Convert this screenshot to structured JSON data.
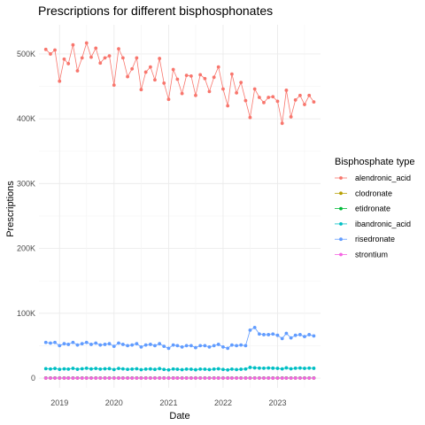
{
  "chart_data": {
    "type": "line",
    "title": "Prescriptions for different bisphosphonates",
    "xlabel": "Date",
    "ylabel": "Prescriptions",
    "x_ticks": [
      "2019",
      "2020",
      "2021",
      "2022",
      "2023"
    ],
    "y_ticks": [
      "0",
      "100K",
      "200K",
      "300K",
      "400K",
      "500K"
    ],
    "y_tick_values": [
      0,
      100000,
      200000,
      300000,
      400000,
      500000
    ],
    "ylim": [
      -15000,
      545000
    ],
    "xlim": [
      "2018-08-16",
      "2023-10-16"
    ],
    "grid": true,
    "legend_position": "right",
    "legend_title": "Bisphosphate type",
    "x": [
      "2018-10",
      "2018-11",
      "2018-12",
      "2019-01",
      "2019-02",
      "2019-03",
      "2019-04",
      "2019-05",
      "2019-06",
      "2019-07",
      "2019-08",
      "2019-09",
      "2019-10",
      "2019-11",
      "2019-12",
      "2020-01",
      "2020-02",
      "2020-03",
      "2020-04",
      "2020-05",
      "2020-06",
      "2020-07",
      "2020-08",
      "2020-09",
      "2020-10",
      "2020-11",
      "2020-12",
      "2021-01",
      "2021-02",
      "2021-03",
      "2021-04",
      "2021-05",
      "2021-06",
      "2021-07",
      "2021-08",
      "2021-09",
      "2021-10",
      "2021-11",
      "2021-12",
      "2022-01",
      "2022-02",
      "2022-03",
      "2022-04",
      "2022-05",
      "2022-06",
      "2022-07",
      "2022-08",
      "2022-09",
      "2022-10",
      "2022-11",
      "2022-12",
      "2023-01",
      "2023-02",
      "2023-03",
      "2023-04",
      "2023-05",
      "2023-06",
      "2023-07",
      "2023-08",
      "2023-09"
    ],
    "series": [
      {
        "name": "alendronic_acid",
        "color": "#F8766D",
        "values": [
          507000,
          500000,
          506000,
          458000,
          492000,
          485000,
          514000,
          474000,
          494000,
          517000,
          495000,
          509000,
          486000,
          494000,
          497000,
          452000,
          508000,
          494000,
          465000,
          477000,
          494000,
          445000,
          472000,
          480000,
          460000,
          493000,
          455000,
          430000,
          476000,
          461000,
          439000,
          467000,
          466000,
          436000,
          468000,
          462000,
          442000,
          464000,
          480000,
          446000,
          420000,
          469000,
          440000,
          456000,
          428000,
          402000,
          446000,
          433000,
          425000,
          433000,
          434000,
          427000,
          393000,
          444000,
          403000,
          429000,
          436000,
          422000,
          436000,
          426000
        ]
      },
      {
        "name": "clodronate",
        "color": "#B79F00",
        "values": [
          100,
          100,
          100,
          100,
          100,
          100,
          100,
          100,
          100,
          100,
          100,
          100,
          100,
          100,
          100,
          100,
          100,
          100,
          100,
          100,
          100,
          100,
          100,
          100,
          100,
          100,
          100,
          100,
          100,
          100,
          100,
          100,
          100,
          100,
          100,
          100,
          100,
          100,
          100,
          100,
          100,
          100,
          100,
          100,
          100,
          100,
          100,
          100,
          100,
          100,
          100,
          100,
          100,
          100,
          100,
          100,
          100,
          100,
          100,
          100
        ]
      },
      {
        "name": "etidronate",
        "color": "#00BA38",
        "values": [
          200,
          200,
          200,
          200,
          200,
          200,
          200,
          200,
          200,
          200,
          200,
          200,
          200,
          200,
          200,
          200,
          200,
          200,
          200,
          200,
          200,
          200,
          200,
          200,
          200,
          200,
          200,
          200,
          200,
          200,
          200,
          200,
          200,
          200,
          200,
          200,
          200,
          200,
          200,
          200,
          200,
          200,
          200,
          200,
          200,
          200,
          200,
          200,
          200,
          200,
          200,
          200,
          200,
          200,
          200,
          200,
          200,
          200,
          200,
          200
        ]
      },
      {
        "name": "ibandronic_acid",
        "color": "#00BFC4",
        "values": [
          14500,
          14000,
          14800,
          13500,
          14200,
          13800,
          15000,
          13600,
          14400,
          15200,
          14100,
          14800,
          13900,
          14300,
          14600,
          13200,
          14900,
          14200,
          13500,
          13900,
          14400,
          13000,
          13800,
          14100,
          13400,
          14600,
          13300,
          12700,
          14000,
          13600,
          13000,
          13800,
          13700,
          12900,
          13900,
          13700,
          13100,
          13800,
          14300,
          13300,
          12600,
          13900,
          13200,
          13600,
          14000,
          16500,
          15800,
          15400,
          15200,
          15600,
          15300,
          15000,
          14200,
          15800,
          14300,
          15200,
          15500,
          15000,
          15400,
          15100
        ]
      },
      {
        "name": "risedronate",
        "color": "#619CFF",
        "values": [
          55000,
          54000,
          55000,
          50000,
          53000,
          52000,
          55000,
          51000,
          53000,
          55000,
          52000,
          54000,
          51000,
          52000,
          53000,
          49000,
          54000,
          52000,
          50000,
          51000,
          53000,
          48000,
          51000,
          52000,
          50000,
          53000,
          49000,
          46000,
          51000,
          50000,
          48000,
          50000,
          50000,
          47000,
          50000,
          50000,
          48000,
          50000,
          52000,
          48000,
          46000,
          51000,
          50000,
          51000,
          50000,
          74000,
          78000,
          68000,
          67000,
          67000,
          68000,
          66000,
          61000,
          69000,
          62000,
          66000,
          67000,
          64000,
          67000,
          65000
        ]
      },
      {
        "name": "strontium",
        "color": "#F564E3",
        "values": [
          0,
          0,
          0,
          0,
          0,
          0,
          0,
          0,
          0,
          0,
          0,
          0,
          0,
          0,
          0,
          0,
          0,
          0,
          0,
          0,
          0,
          0,
          0,
          0,
          0,
          0,
          0,
          0,
          0,
          0,
          0,
          0,
          0,
          0,
          0,
          0,
          0,
          0,
          0,
          0,
          0,
          0,
          0,
          0,
          0,
          0,
          0,
          0,
          0,
          0,
          0,
          0,
          0,
          0,
          0,
          0,
          0,
          0,
          0,
          0
        ]
      }
    ]
  }
}
